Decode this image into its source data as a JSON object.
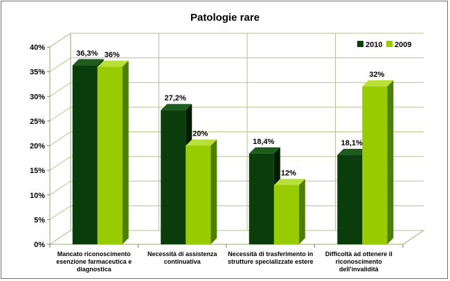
{
  "chart_data": {
    "type": "bar",
    "title": "Patologie rare",
    "categories": [
      [
        "Mancato riconoscimento",
        "esenzione farmaceutica e",
        "diagnostica"
      ],
      [
        "Necessità di assistenza",
        "continuativa"
      ],
      [
        "Necessità di trasferimento in",
        "strutture specializzate estere"
      ],
      [
        "Difficoltà ad ottenere il",
        "riconoscimento",
        "dell'invalidità"
      ]
    ],
    "series": [
      {
        "name": "2010",
        "values": [
          36.3,
          27.2,
          18.4,
          18.1
        ],
        "labels": [
          "36,3%",
          "27,2%",
          "18,4%",
          "18,1%"
        ],
        "color": "#0b3c0b",
        "side": "#041b04",
        "top": "#1f5a1f"
      },
      {
        "name": "2009",
        "values": [
          36,
          20,
          12,
          32
        ],
        "labels": [
          "36%",
          "20%",
          "12%",
          "32%"
        ],
        "color": "#99cc00",
        "side": "#4d7f00",
        "top": "#b8e03a"
      }
    ],
    "ylim": [
      0,
      40
    ],
    "yticks": [
      "0%",
      "5%",
      "10%",
      "15%",
      "20%",
      "25%",
      "30%",
      "35%",
      "40%"
    ],
    "grid": true,
    "legend_position": "top-right"
  }
}
